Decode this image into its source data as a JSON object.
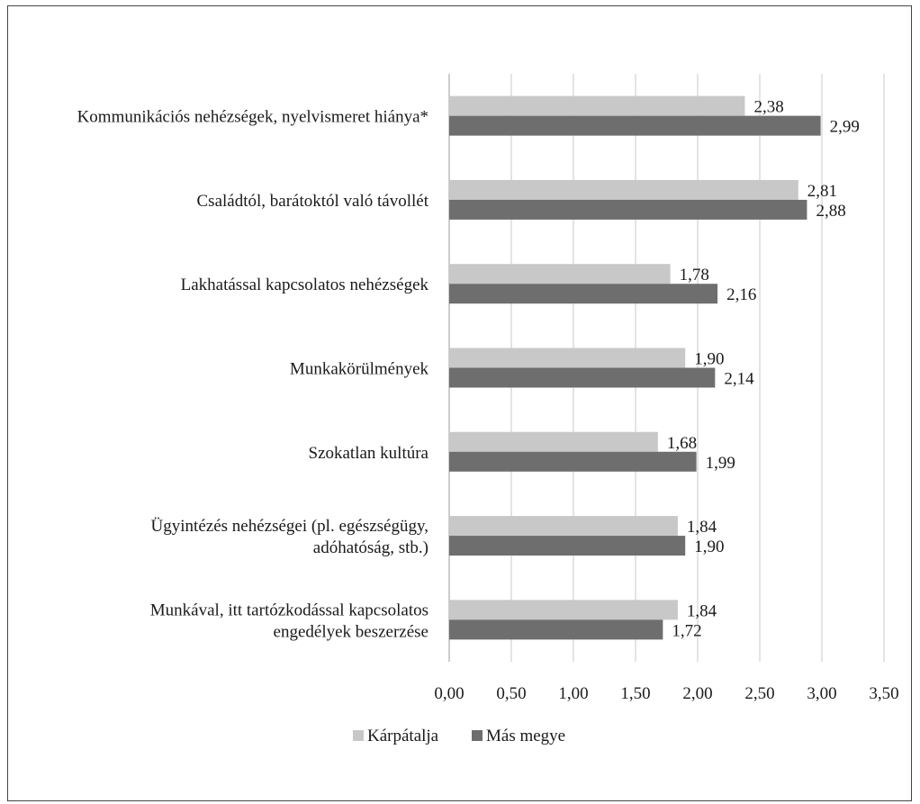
{
  "chart_data": {
    "type": "bar",
    "orientation": "horizontal",
    "categories": [
      [
        "Kommunikációs nehézségek, nyelvismeret hiánya*"
      ],
      [
        "Családtól, barátoktól való távollét"
      ],
      [
        "Lakhatással kapcsolatos nehézségek"
      ],
      [
        "Munkakörülmények"
      ],
      [
        "Szokatlan kultúra"
      ],
      [
        "Ügyintézés nehézségei (pl. egészségügy,",
        "adóhatóság, stb.)"
      ],
      [
        "Munkával, itt tartózkodással kapcsolatos",
        "engedélyek beszerzése"
      ]
    ],
    "series": [
      {
        "name": "Kárpátalja",
        "color": "#c8c8c8",
        "values": [
          2.38,
          2.81,
          1.78,
          1.9,
          1.68,
          1.84,
          1.84
        ],
        "labels": [
          "2,38",
          "2,81",
          "1,78",
          "1,90",
          "1,68",
          "1,84",
          "1,84"
        ]
      },
      {
        "name": "Más megye",
        "color": "#6e6e6e",
        "values": [
          2.99,
          2.88,
          2.16,
          2.14,
          1.99,
          1.9,
          1.72
        ],
        "labels": [
          "2,99",
          "2,88",
          "2,16",
          "2,14",
          "1,99",
          "1,90",
          "1,72"
        ]
      }
    ],
    "x_ticks": [
      "0,00",
      "0,50",
      "1,00",
      "1,50",
      "2,00",
      "2,50",
      "3,00",
      "3,50"
    ],
    "xlim": [
      0,
      3.5
    ],
    "grid": "vertical",
    "legend_position": "bottom"
  }
}
